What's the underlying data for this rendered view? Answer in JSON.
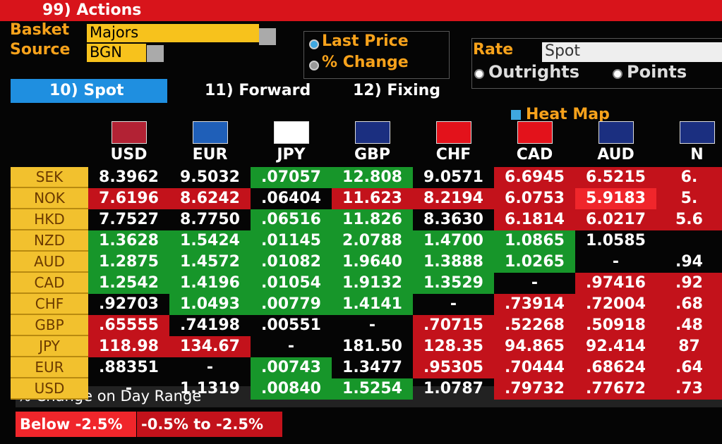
{
  "header": {
    "actions": "99) Actions",
    "basket_label": "Basket",
    "basket": "Majors",
    "source_label": "Source",
    "source": "BGN",
    "display_options": [
      "Last Price",
      "% Change"
    ],
    "rate_label": "Rate",
    "rate": "Spot",
    "quote_options": [
      "Outrights",
      "Points"
    ]
  },
  "tabs": [
    "10) Spot",
    "11) Forward",
    "12) Fixing"
  ],
  "heat_map": "Heat Map",
  "table": {
    "columns": [
      "USD",
      "EUR",
      "JPY",
      "GBP",
      "CHF",
      "CAD",
      "AUD",
      "N"
    ],
    "rows": [
      {
        "label": "SEK",
        "cells": [
          "8.3962",
          "9.5032",
          ".07057",
          "12.808",
          "9.0571",
          "6.6945",
          "6.5215",
          "6."
        ],
        "shade": "kkggkrrr"
      },
      {
        "label": "NOK",
        "cells": [
          "7.6196",
          "8.6242",
          ".06404",
          "11.623",
          "8.2194",
          "6.0753",
          "5.9183",
          "5."
        ],
        "shade": "rrkrrrBr"
      },
      {
        "label": "HKD",
        "cells": [
          "7.7527",
          "8.7750",
          ".06516",
          "11.826",
          "8.3630",
          "6.1814",
          "6.0217",
          "5.6"
        ],
        "shade": "kkggkrrr"
      },
      {
        "label": "NZD",
        "cells": [
          "1.3628",
          "1.5424",
          ".01145",
          "2.0788",
          "1.4700",
          "1.0865",
          "1.0585",
          null
        ],
        "shade": "ggggggkk"
      },
      {
        "label": "AUD",
        "cells": [
          "1.2875",
          "1.4572",
          ".01082",
          "1.9640",
          "1.3888",
          "1.0265",
          "-",
          ".94"
        ],
        "shade": "ggggggkk"
      },
      {
        "label": "CAD",
        "cells": [
          "1.2542",
          "1.4196",
          ".01054",
          "1.9132",
          "1.3529",
          "-",
          ".97416",
          ".92"
        ],
        "shade": "gggggkrr"
      },
      {
        "label": "CHF",
        "cells": [
          ".92703",
          "1.0493",
          ".00779",
          "1.4141",
          "-",
          ".73914",
          ".72004",
          ".68"
        ],
        "shade": "kgggkrrr"
      },
      {
        "label": "GBP",
        "cells": [
          ".65555",
          ".74198",
          ".00551",
          "-",
          ".70715",
          ".52268",
          ".50918",
          ".48"
        ],
        "shade": "rkkkrrrr"
      },
      {
        "label": "JPY",
        "cells": [
          "118.98",
          "134.67",
          "-",
          "181.50",
          "128.35",
          "94.865",
          "92.414",
          "87"
        ],
        "shade": "rrkkrrrr"
      },
      {
        "label": "EUR",
        "cells": [
          ".88351",
          "-",
          ".00743",
          "1.3477",
          ".95305",
          ".70444",
          ".68624",
          ".64"
        ],
        "shade": "kkgkrrrr"
      },
      {
        "label": "USD",
        "cells": [
          "-",
          "1.1319",
          ".00840",
          "1.5254",
          "1.0787",
          ".79732",
          ".77672",
          ".73"
        ],
        "shade": "kkggkrrr"
      }
    ]
  },
  "footer": {
    "title": "% Change on Day Range",
    "legend": [
      "Below -2.5%",
      "-0.5% to -2.5%"
    ]
  }
}
